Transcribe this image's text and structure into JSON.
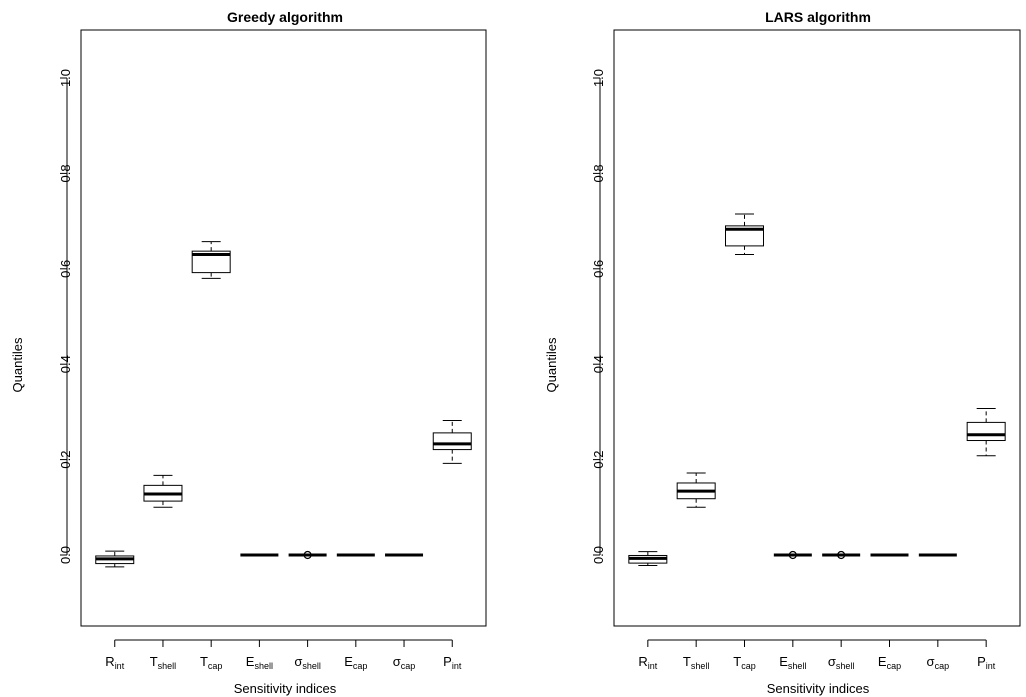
{
  "chart_data": [
    {
      "type": "boxplot",
      "title": "Greedy algorithm",
      "xlabel": "Sensitivity indices",
      "ylabel": "Quantiles",
      "ylim": [
        -0.15,
        1.05
      ],
      "yticks": [
        "0.0",
        "0.2",
        "0.4",
        "0.6",
        "0.8",
        "1.0"
      ],
      "grid": false,
      "categories": [
        {
          "base": "R",
          "sub": "int"
        },
        {
          "base": "T",
          "sub": "shell"
        },
        {
          "base": "T",
          "sub": "cap"
        },
        {
          "base": "E",
          "sub": "shell"
        },
        {
          "base": "σ",
          "sub": "shell"
        },
        {
          "base": "E",
          "sub": "cap"
        },
        {
          "base": "σ",
          "sub": "cap"
        },
        {
          "base": "P",
          "sub": "int"
        }
      ],
      "boxes": [
        {
          "min": -0.025,
          "q1": -0.018,
          "median": -0.008,
          "q3": -0.002,
          "max": 0.008,
          "outliers": []
        },
        {
          "min": 0.1,
          "q1": 0.113,
          "median": 0.128,
          "q3": 0.146,
          "max": 0.167,
          "outliers": []
        },
        {
          "min": 0.58,
          "q1": 0.592,
          "median": 0.63,
          "q3": 0.637,
          "max": 0.657,
          "outliers": []
        },
        {
          "min": 0,
          "q1": 0,
          "median": 0,
          "q3": 0,
          "max": 0,
          "outliers": []
        },
        {
          "min": 0,
          "q1": 0,
          "median": 0,
          "q3": 0,
          "max": 0,
          "outliers": [
            0.0
          ]
        },
        {
          "min": 0,
          "q1": 0,
          "median": 0,
          "q3": 0,
          "max": 0,
          "outliers": []
        },
        {
          "min": 0,
          "q1": 0,
          "median": 0,
          "q3": 0,
          "max": 0,
          "outliers": []
        },
        {
          "min": 0.192,
          "q1": 0.221,
          "median": 0.233,
          "q3": 0.256,
          "max": 0.282,
          "outliers": []
        }
      ]
    },
    {
      "type": "boxplot",
      "title": "LARS algorithm",
      "xlabel": "Sensitivity indices",
      "ylabel": "Quantiles",
      "ylim": [
        -0.15,
        1.05
      ],
      "yticks": [
        "0.0",
        "0.2",
        "0.4",
        "0.6",
        "0.8",
        "1.0"
      ],
      "grid": false,
      "categories": [
        {
          "base": "R",
          "sub": "int"
        },
        {
          "base": "T",
          "sub": "shell"
        },
        {
          "base": "T",
          "sub": "cap"
        },
        {
          "base": "E",
          "sub": "shell"
        },
        {
          "base": "σ",
          "sub": "shell"
        },
        {
          "base": "E",
          "sub": "cap"
        },
        {
          "base": "σ",
          "sub": "cap"
        },
        {
          "base": "P",
          "sub": "int"
        }
      ],
      "boxes": [
        {
          "min": -0.022,
          "q1": -0.017,
          "median": -0.007,
          "q3": -0.001,
          "max": 0.007,
          "outliers": []
        },
        {
          "min": 0.1,
          "q1": 0.118,
          "median": 0.134,
          "q3": 0.151,
          "max": 0.172,
          "outliers": []
        },
        {
          "min": 0.63,
          "q1": 0.648,
          "median": 0.683,
          "q3": 0.69,
          "max": 0.715,
          "outliers": []
        },
        {
          "min": 0,
          "q1": 0,
          "median": 0,
          "q3": 0,
          "max": 0,
          "outliers": [
            0.0
          ]
        },
        {
          "min": 0,
          "q1": 0,
          "median": 0,
          "q3": 0,
          "max": 0,
          "outliers": [
            0.0
          ]
        },
        {
          "min": 0,
          "q1": 0,
          "median": 0,
          "q3": 0,
          "max": 0,
          "outliers": []
        },
        {
          "min": 0,
          "q1": 0,
          "median": 0,
          "q3": 0,
          "max": 0,
          "outliers": []
        },
        {
          "min": 0.208,
          "q1": 0.24,
          "median": 0.252,
          "q3": 0.278,
          "max": 0.307,
          "outliers": []
        }
      ]
    }
  ]
}
